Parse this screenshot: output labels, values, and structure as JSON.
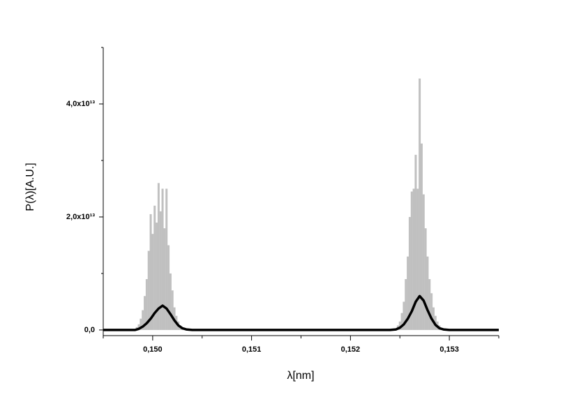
{
  "chart_data": {
    "type": "spectrum",
    "xlabel": "λ[nm]",
    "ylabel": "P(λ)[A.U.]",
    "xlim": [
      0.1495,
      0.1535
    ],
    "xticks": [
      {
        "value": 0.15,
        "label": "0,150"
      },
      {
        "value": 0.151,
        "label": "0,151"
      },
      {
        "value": 0.152,
        "label": "0,152"
      },
      {
        "value": 0.153,
        "label": "0,153"
      }
    ],
    "x_minor_ticks": [
      0.1495,
      0.1505,
      0.1515,
      0.1525,
      0.1535
    ],
    "ylim": [
      -1000000000000.0,
      50000000000000.0
    ],
    "yticks": [
      {
        "value": 0,
        "label": "0,0"
      },
      {
        "value": 20000000000000.0,
        "label": "2,0x10¹³"
      },
      {
        "value": 40000000000000.0,
        "label": "4,0x10¹³"
      }
    ],
    "y_minor_ticks": [
      10000000000000.0,
      30000000000000.0,
      50000000000000.0
    ],
    "series": [
      {
        "color": "#c0c0c0",
        "style": "bars",
        "x": [
          0.14984,
          0.14986,
          0.14988,
          0.1499,
          0.14992,
          0.14994,
          0.14996,
          0.14998,
          0.15,
          0.15002,
          0.15004,
          0.15006,
          0.15008,
          0.1501,
          0.15012,
          0.15014,
          0.15016,
          0.15018,
          0.1502,
          0.15022,
          0.15024,
          0.15026,
          0.15028,
          0.1503,
          0.15246,
          0.15248,
          0.1525,
          0.15252,
          0.15254,
          0.15256,
          0.15258,
          0.1526,
          0.15262,
          0.15264,
          0.15266,
          0.15268,
          0.1527,
          0.15272,
          0.15274,
          0.15276,
          0.15278,
          0.1528,
          0.15282,
          0.15284,
          0.15286,
          0.15288,
          0.1529,
          0.15292
        ],
        "values": [
          500000000000.0,
          1000000000000.0,
          2000000000000.0,
          3500000000000.0,
          6000000000000.0,
          9000000000000.0,
          14000000000000.0,
          20500000000000.0,
          17000000000000.0,
          22000000000000.0,
          19000000000000.0,
          26000000000000.0,
          21000000000000.0,
          25000000000000.0,
          18000000000000.0,
          25000000000000.0,
          15000000000000.0,
          10000000000000.0,
          7000000000000.0,
          4000000000000.0,
          2500000000000.0,
          1500000000000.0,
          800000000000.0,
          300000000000.0,
          300000000000.0,
          800000000000.0,
          1500000000000.0,
          3000000000000.0,
          5000000000000.0,
          9000000000000.0,
          13000000000000.0,
          20000000000000.0,
          24500000000000.0,
          25000000000000.0,
          31000000000000.0,
          25000000000000.0,
          44500000000000.0,
          33000000000000.0,
          24000000000000.0,
          18000000000000.0,
          13000000000000.0,
          9000000000000.0,
          6500000000000.0,
          4000000000000.0,
          2500000000000.0,
          1500000000000.0,
          800000000000.0,
          400000000000.0
        ]
      },
      {
        "color": "#000000",
        "style": "line",
        "x": [
          0.1495,
          0.14982,
          0.14986,
          0.1499,
          0.14994,
          0.14998,
          0.15002,
          0.15006,
          0.1501,
          0.15014,
          0.15018,
          0.15022,
          0.15026,
          0.1503,
          0.15034,
          0.1504,
          0.1524,
          0.15246,
          0.1525,
          0.15254,
          0.15258,
          0.15262,
          0.15266,
          0.1527,
          0.15274,
          0.15278,
          0.15282,
          0.15286,
          0.1529,
          0.15294,
          0.153,
          0.1535
        ],
        "values": [
          0,
          0,
          200000000000.0,
          600000000000.0,
          1200000000000.0,
          2000000000000.0,
          3000000000000.0,
          3800000000000.0,
          4300000000000.0,
          3800000000000.0,
          2800000000000.0,
          1700000000000.0,
          800000000000.0,
          300000000000.0,
          100000000000.0,
          0,
          0,
          100000000000.0,
          400000000000.0,
          1000000000000.0,
          2000000000000.0,
          3300000000000.0,
          5000000000000.0,
          6000000000000.0,
          5200000000000.0,
          3500000000000.0,
          2000000000000.0,
          900000000000.0,
          300000000000.0,
          100000000000.0,
          0,
          0
        ]
      }
    ]
  }
}
